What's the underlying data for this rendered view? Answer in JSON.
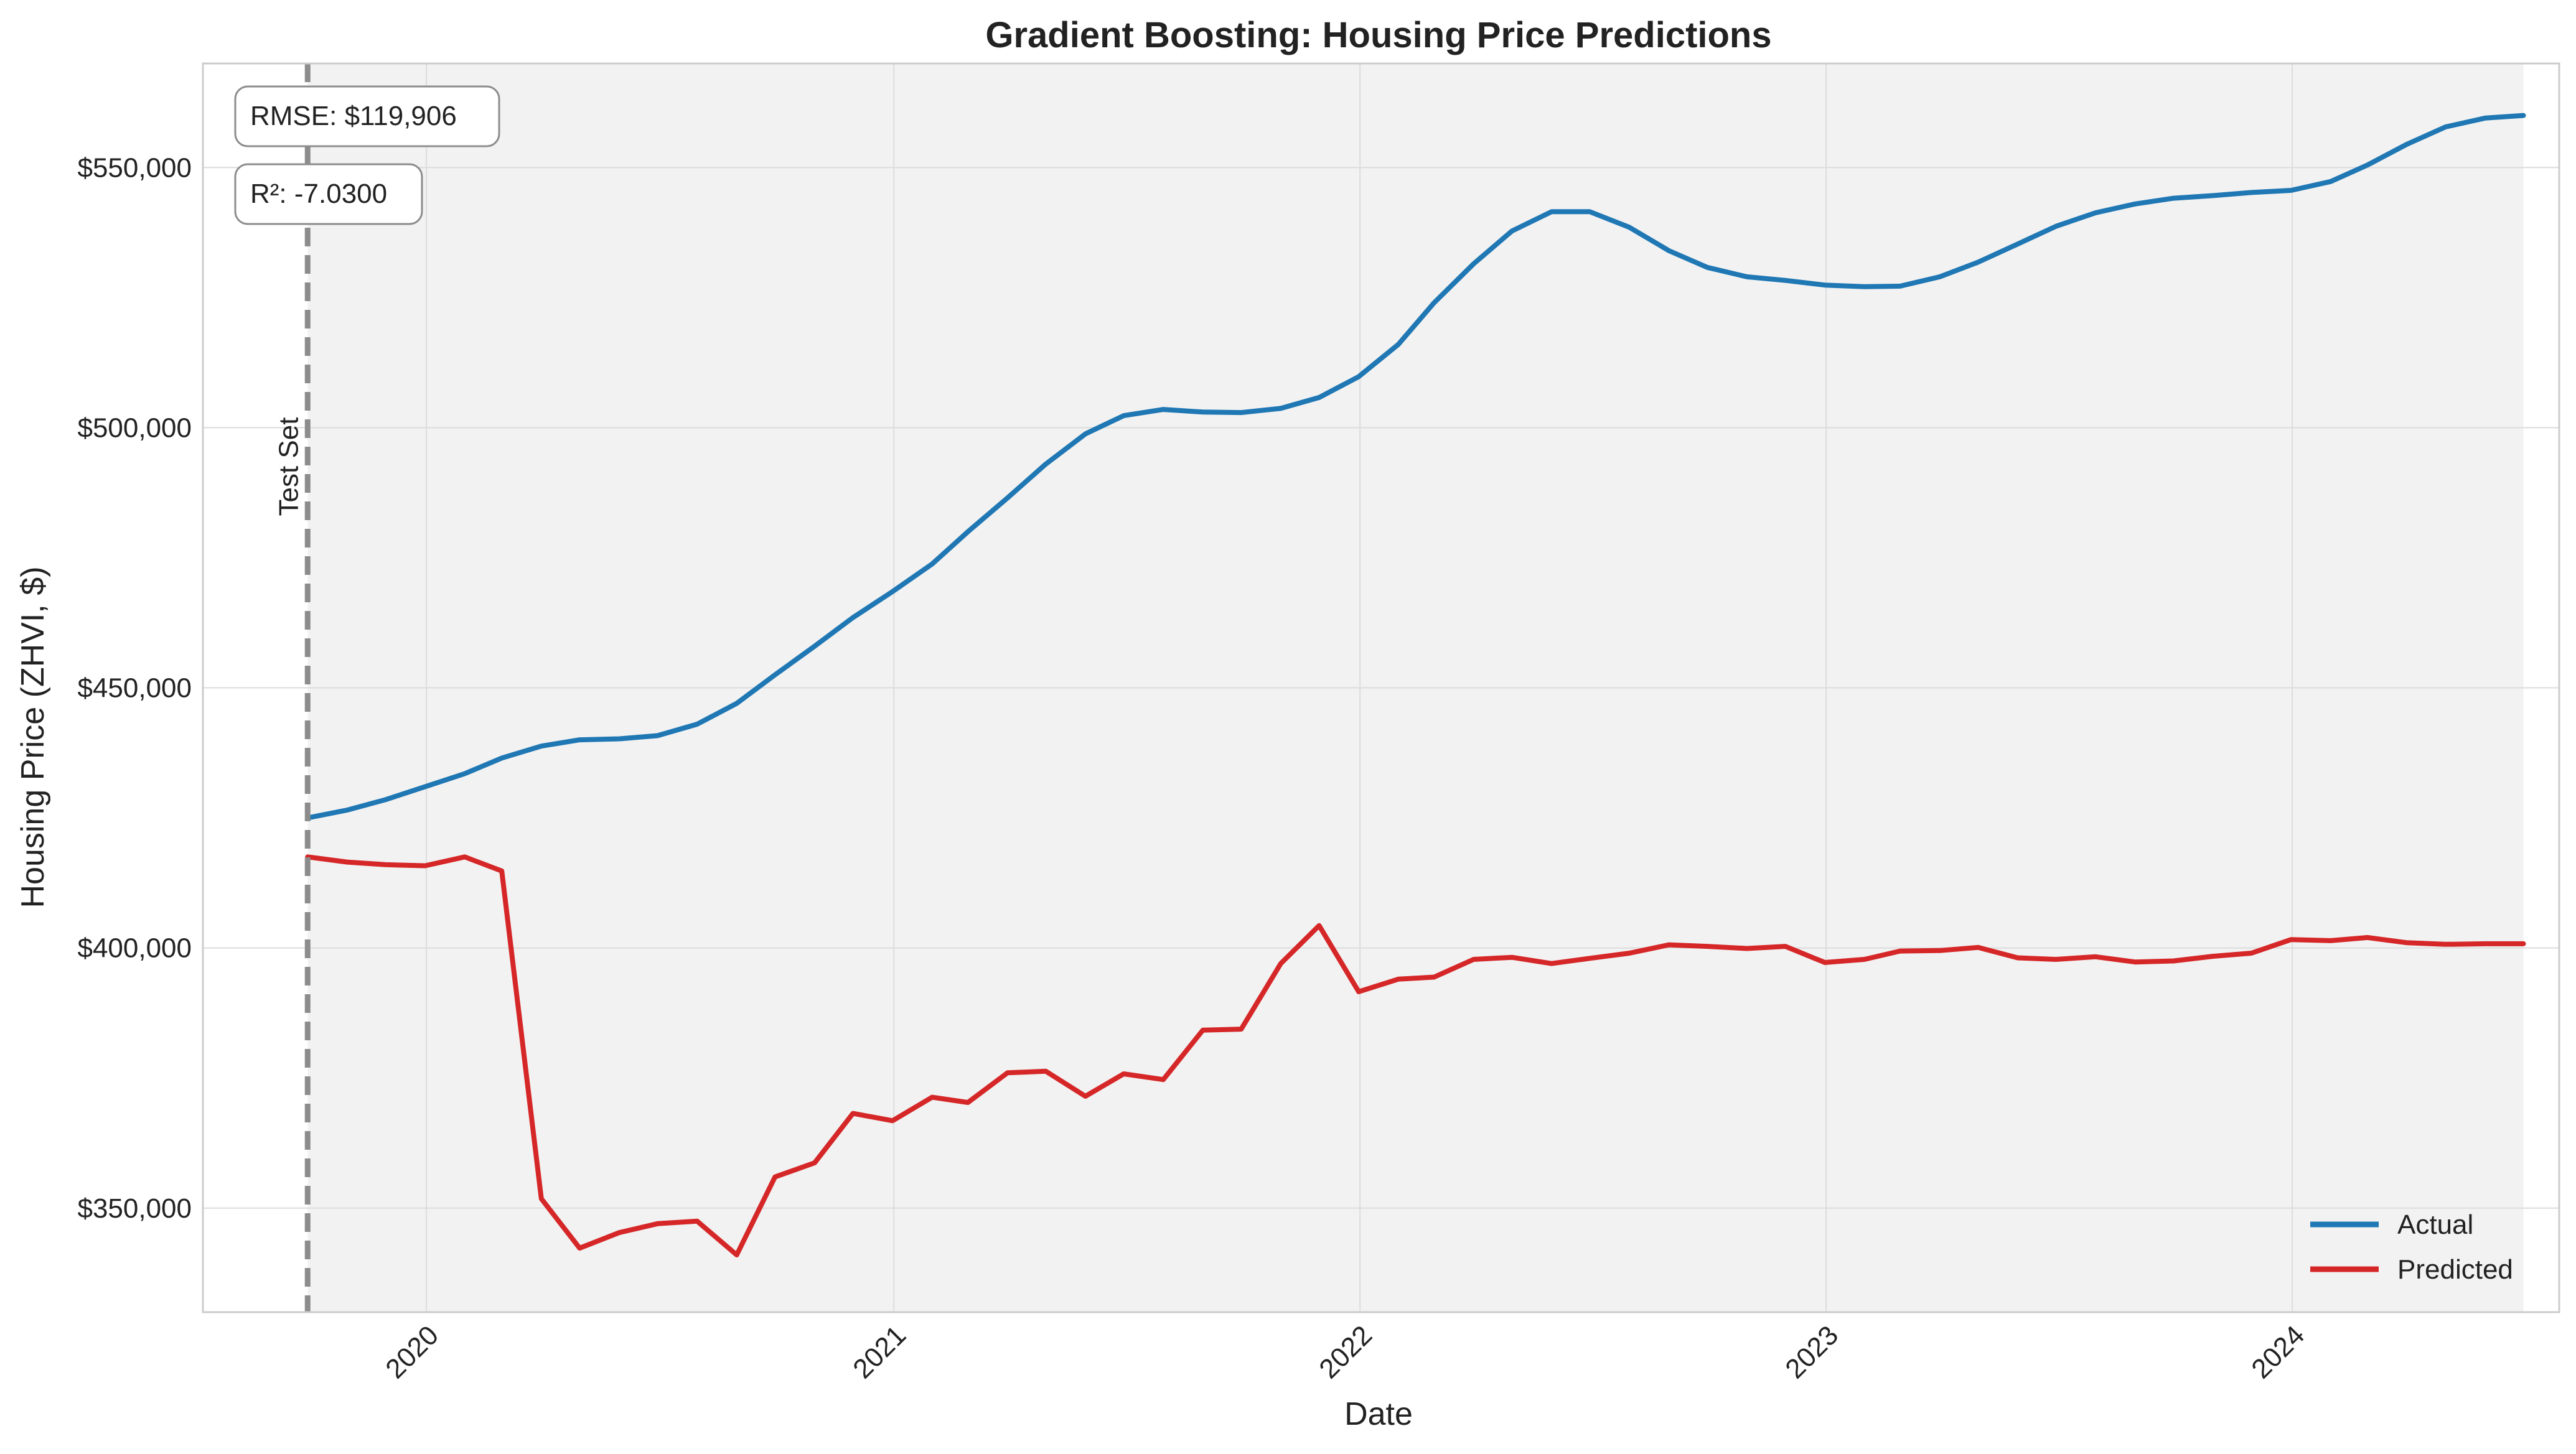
{
  "chart_data": {
    "type": "line",
    "title": "Gradient Boosting: Housing Price Predictions",
    "xlabel": "Date",
    "ylabel": "Housing Price (ZHVI, $)",
    "xlim": [
      "2019-07-10",
      "2024-07-28"
    ],
    "ylim": [
      330000,
      570000
    ],
    "x_ticks": [
      "2020",
      "2021",
      "2022",
      "2023",
      "2024"
    ],
    "x_tick_dates": [
      "2020-01-01",
      "2021-01-01",
      "2022-01-01",
      "2023-01-01",
      "2024-01-01"
    ],
    "y_ticks": [
      350000,
      400000,
      450000,
      500000,
      550000
    ],
    "y_tick_labels": [
      "$350,000",
      "$400,000",
      "$450,000",
      "$500,000",
      "$550,000"
    ],
    "grid": true,
    "legend_position": "bottom-right",
    "test_start": "2019-09-30",
    "test_end": "2024-06-30",
    "test_set_label": "Test Set",
    "metrics": [
      "RMSE: $119,906",
      "R²: -7.0300"
    ],
    "x": [
      "2019-09-30",
      "2019-10-31",
      "2019-11-30",
      "2019-12-31",
      "2020-01-31",
      "2020-02-29",
      "2020-03-31",
      "2020-04-30",
      "2020-05-31",
      "2020-06-30",
      "2020-07-31",
      "2020-08-31",
      "2020-09-30",
      "2020-10-31",
      "2020-11-30",
      "2020-12-31",
      "2021-01-31",
      "2021-02-28",
      "2021-03-31",
      "2021-04-30",
      "2021-05-31",
      "2021-06-30",
      "2021-07-31",
      "2021-08-31",
      "2021-09-30",
      "2021-10-31",
      "2021-11-30",
      "2021-12-31",
      "2022-01-31",
      "2022-02-28",
      "2022-03-31",
      "2022-04-30",
      "2022-05-31",
      "2022-06-30",
      "2022-07-31",
      "2022-08-31",
      "2022-09-30",
      "2022-10-31",
      "2022-11-30",
      "2022-12-31",
      "2023-01-31",
      "2023-02-28",
      "2023-03-31",
      "2023-04-30",
      "2023-05-31",
      "2023-06-30",
      "2023-07-31",
      "2023-08-31",
      "2023-09-30",
      "2023-10-31",
      "2023-11-30",
      "2023-12-31",
      "2024-01-31",
      "2024-02-29",
      "2024-03-31",
      "2024-04-30",
      "2024-05-31",
      "2024-06-30"
    ],
    "series": [
      {
        "name": "Actual",
        "color": "#1f77b4",
        "values": [
          425000,
          426500,
          428500,
          431000,
          433500,
          436500,
          438800,
          440000,
          440200,
          440800,
          443000,
          447000,
          452500,
          458000,
          463500,
          468500,
          473800,
          480000,
          486500,
          493000,
          498800,
          502300,
          503500,
          503000,
          502900,
          503700,
          505800,
          509800,
          516000,
          524000,
          531500,
          537800,
          541500,
          541500,
          538500,
          534000,
          530800,
          529000,
          528300,
          527400,
          527100,
          527200,
          529000,
          531800,
          535300,
          538700,
          541300,
          543000,
          544100,
          544600,
          545200,
          545600,
          547300,
          550500,
          554500,
          557800,
          559500,
          560000
        ]
      },
      {
        "name": "Predicted",
        "color": "#d62728",
        "values": [
          417500,
          416500,
          416000,
          415800,
          417500,
          414800,
          351800,
          342300,
          345300,
          347000,
          347500,
          341000,
          356000,
          358700,
          368200,
          366800,
          371300,
          370300,
          376000,
          376300,
          371500,
          375800,
          374700,
          384200,
          384400,
          397000,
          404300,
          391600,
          394000,
          394400,
          397800,
          398200,
          397000,
          398000,
          399000,
          400600,
          400300,
          399900,
          400300,
          397200,
          397800,
          399400,
          399500,
          400100,
          398100,
          397800,
          398300,
          397300,
          397500,
          398400,
          399000,
          401600,
          401400,
          402000,
          401000,
          400700,
          400800,
          400800
        ]
      }
    ]
  }
}
